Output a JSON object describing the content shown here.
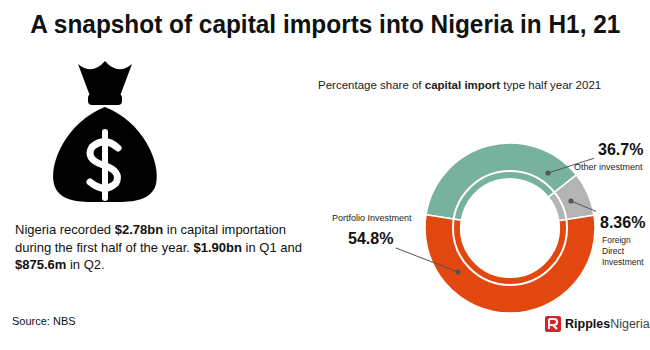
{
  "title": "A snapshot of capital imports into Nigeria in H1, 21",
  "description": [
    "Nigeria recorded ",
    "$2.78bn",
    " in capital importation during the first half of the year. ",
    "$1.90bn",
    " in Q1 and ",
    "$875.6m",
    " in Q2."
  ],
  "source": "Source: NBS",
  "brand": [
    "Ripples",
    "Nigeria"
  ],
  "chart_data": {
    "type": "donut",
    "subtitle": [
      "Percentage share of ",
      "capital import",
      " type half year 2021"
    ],
    "categories": [
      "Other investment",
      "Foreign Direct Investment",
      "Portfolio Investment"
    ],
    "values": [
      36.7,
      8.36,
      54.8
    ],
    "value_labels": [
      "36.7%",
      "8.36%",
      "54.8%"
    ],
    "colors": [
      "#78b19d",
      "#b4b4b4",
      "#e2470f"
    ],
    "data_labels": true
  }
}
